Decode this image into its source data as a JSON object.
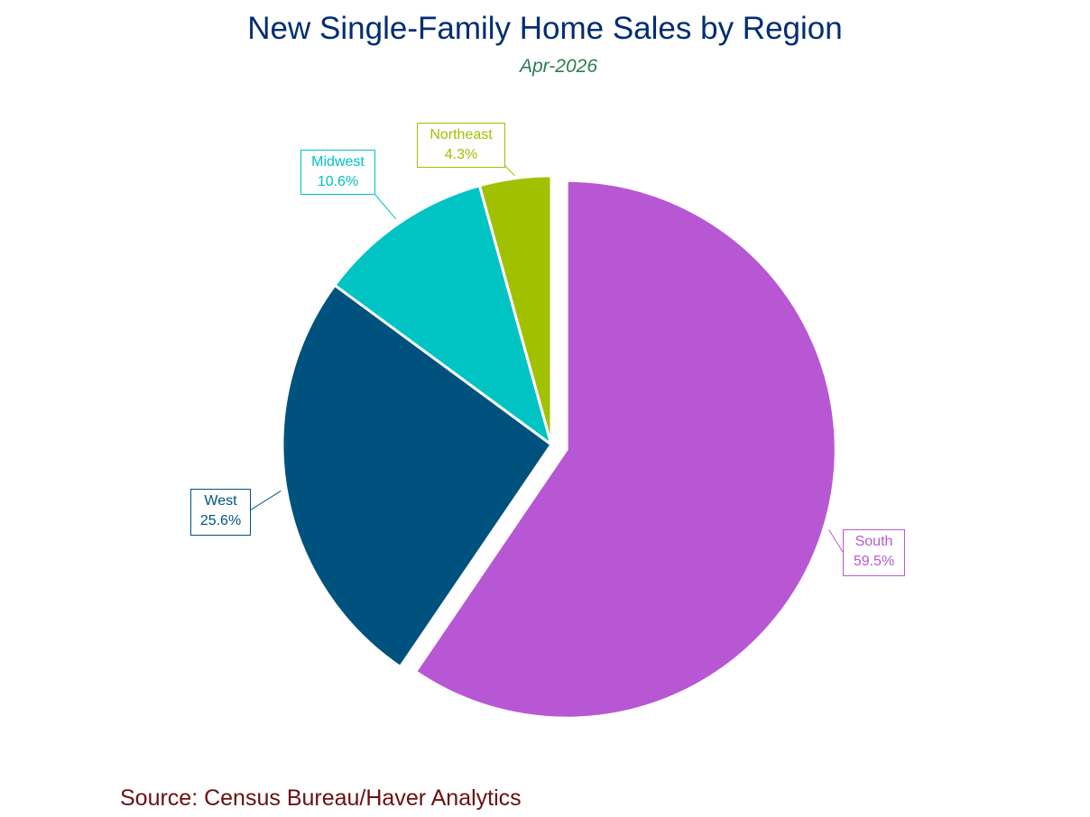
{
  "title": "New Single-Family Home Sales by Region",
  "subtitle": "Apr-2026",
  "source": "Source:  Census Bureau/Haver Analytics",
  "chart_data": {
    "type": "pie",
    "title": "New Single-Family Home Sales by Region",
    "subtitle": "Apr-2026",
    "slices": [
      {
        "name": "South",
        "value": 59.5,
        "label": "59.5%",
        "color": "#b857d3"
      },
      {
        "name": "West",
        "value": 25.6,
        "label": "25.6%",
        "color": "#00527e"
      },
      {
        "name": "Midwest",
        "value": 10.6,
        "label": "10.6%",
        "color": "#00c3c4"
      },
      {
        "name": "Northeast",
        "value": 4.3,
        "label": "4.3%",
        "color": "#a1c000"
      }
    ]
  }
}
